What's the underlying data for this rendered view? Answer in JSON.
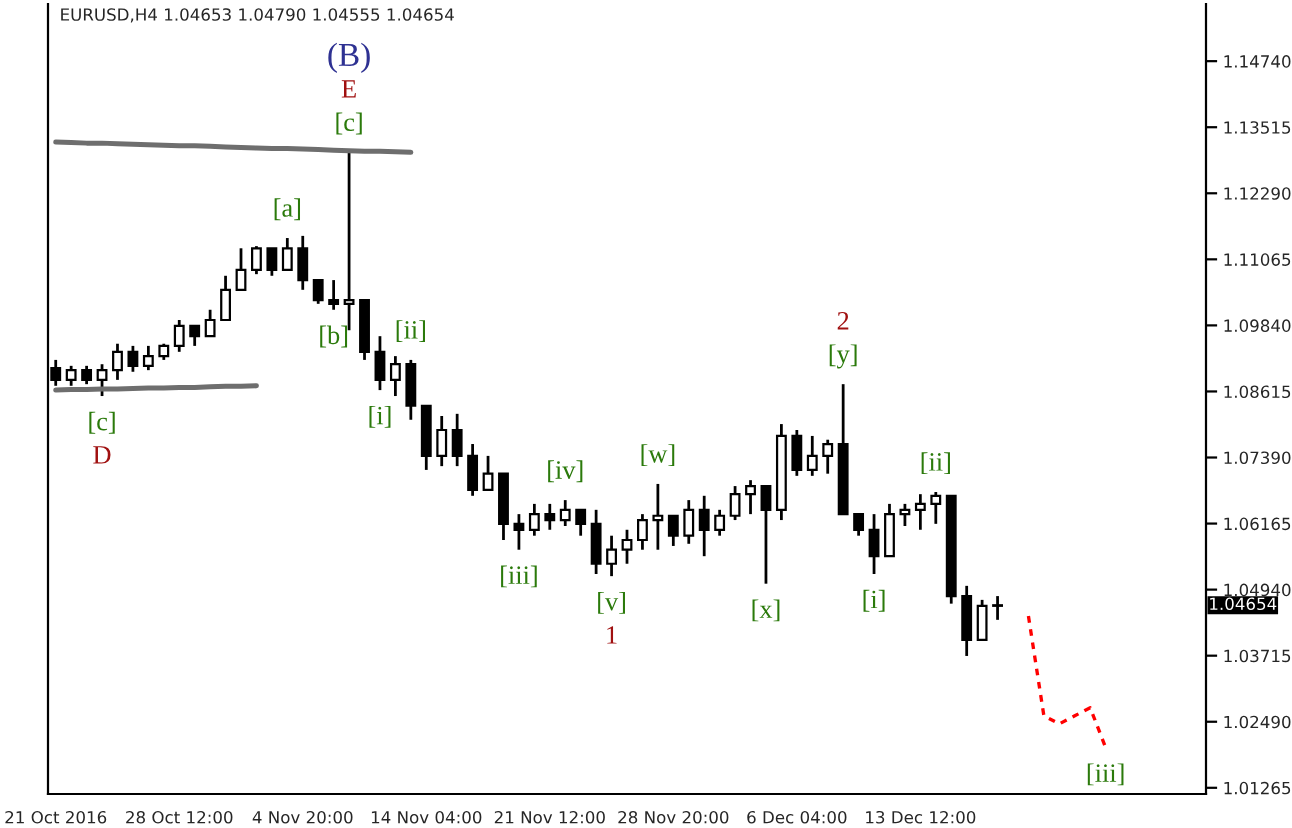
{
  "chart_data": {
    "type": "candlestick",
    "title": "EURUSD,H4 1.04653 1.04790 1.04555 1.04654",
    "color": "#000000",
    "categories": [
      "21 Oct 2016",
      null,
      null,
      null,
      null,
      null,
      null,
      null,
      "28 Oct 12:00",
      null,
      null,
      null,
      null,
      null,
      null,
      null,
      "4 Nov 20:00",
      null,
      null,
      null,
      null,
      null,
      null,
      null,
      "14 Nov 04:00",
      null,
      null,
      null,
      null,
      null,
      null,
      null,
      "21 Nov 12:00",
      null,
      null,
      null,
      null,
      null,
      null,
      null,
      "28 Nov 20:00",
      null,
      null,
      null,
      null,
      null,
      null,
      null,
      "6 Dec 04:00",
      null,
      null,
      null,
      null,
      null,
      null,
      null,
      "13 Dec 12:00",
      null,
      null,
      null,
      null,
      null,
      null,
      null,
      null,
      null,
      null,
      null,
      null,
      null,
      null,
      null,
      null,
      null,
      null
    ],
    "ohlc": [
      [
        1.0905,
        1.092,
        1.0872,
        1.0883
      ],
      [
        1.0883,
        1.0909,
        1.0872,
        1.0901
      ],
      [
        1.0901,
        1.0909,
        1.0875,
        1.0883
      ],
      [
        1.0883,
        1.0912,
        1.0853,
        1.0901
      ],
      [
        1.0901,
        1.095,
        1.0883,
        1.0935
      ],
      [
        1.0935,
        1.0946,
        1.0898,
        1.0909
      ],
      [
        1.0909,
        1.0946,
        1.0901,
        1.0927
      ],
      [
        1.0927,
        1.095,
        1.092,
        1.0946
      ],
      [
        1.0946,
        1.0994,
        1.0935,
        1.0983
      ],
      [
        1.0983,
        1.0983,
        1.0946,
        1.0964
      ],
      [
        1.0964,
        1.1013,
        1.0964,
        1.0994
      ],
      [
        1.0994,
        1.1076,
        1.0994,
        1.105
      ],
      [
        1.105,
        1.1127,
        1.105,
        1.1087
      ],
      [
        1.1087,
        1.1131,
        1.1079,
        1.1127
      ],
      [
        1.1127,
        1.1127,
        1.1076,
        1.1087
      ],
      [
        1.1087,
        1.1146,
        1.1087,
        1.1127
      ],
      [
        1.1127,
        1.115,
        1.105,
        1.1068
      ],
      [
        1.1068,
        1.1068,
        1.1024,
        1.1031
      ],
      [
        1.1031,
        1.1068,
        1.1013,
        1.1024
      ],
      [
        1.1024,
        1.1305,
        1.0975,
        1.1031
      ],
      [
        1.1031,
        1.1031,
        1.092,
        1.0935
      ],
      [
        1.0935,
        1.0964,
        1.0864,
        1.0883
      ],
      [
        1.0883,
        1.0927,
        1.0853,
        1.0912
      ],
      [
        1.0912,
        1.092,
        1.0809,
        1.0835
      ],
      [
        1.0835,
        1.0835,
        1.0716,
        1.0742
      ],
      [
        1.0742,
        1.0816,
        1.0723,
        1.079
      ],
      [
        1.079,
        1.082,
        1.0723,
        1.0742
      ],
      [
        1.0742,
        1.0764,
        1.0668,
        1.0679
      ],
      [
        1.0679,
        1.0742,
        1.0679,
        1.0709
      ],
      [
        1.0709,
        1.0709,
        1.0586,
        1.0616
      ],
      [
        1.0616,
        1.0634,
        1.0568,
        1.0605
      ],
      [
        1.0605,
        1.0653,
        1.0594,
        1.0634
      ],
      [
        1.0634,
        1.0653,
        1.0605,
        1.0623
      ],
      [
        1.0623,
        1.066,
        1.0612,
        1.0642
      ],
      [
        1.0642,
        1.0642,
        1.0594,
        1.0616
      ],
      [
        1.0616,
        1.0642,
        1.0523,
        1.0542
      ],
      [
        1.0542,
        1.0594,
        1.0519,
        1.0568
      ],
      [
        1.0568,
        1.0605,
        1.0542,
        1.0586
      ],
      [
        1.0586,
        1.0634,
        1.0568,
        1.0623
      ],
      [
        1.0623,
        1.069,
        1.0568,
        1.0631
      ],
      [
        1.0631,
        1.0631,
        1.0575,
        1.0594
      ],
      [
        1.0594,
        1.066,
        1.0579,
        1.0642
      ],
      [
        1.0642,
        1.0668,
        1.0556,
        1.0605
      ],
      [
        1.0605,
        1.0642,
        1.0594,
        1.0631
      ],
      [
        1.0631,
        1.0686,
        1.0623,
        1.0671
      ],
      [
        1.0671,
        1.0697,
        1.0634,
        1.0686
      ],
      [
        1.0686,
        1.0686,
        1.0505,
        1.0642
      ],
      [
        1.0642,
        1.0801,
        1.0623,
        1.0779
      ],
      [
        1.0779,
        1.079,
        1.0705,
        1.0716
      ],
      [
        1.0716,
        1.0779,
        1.0705,
        1.0742
      ],
      [
        1.0742,
        1.0772,
        1.0709,
        1.0764
      ],
      [
        1.0764,
        1.0875,
        1.0634,
        1.0634
      ],
      [
        1.0634,
        1.0634,
        1.0594,
        1.0605
      ],
      [
        1.0605,
        1.0634,
        1.0523,
        1.0556
      ],
      [
        1.0556,
        1.0653,
        1.0556,
        1.0634
      ],
      [
        1.0634,
        1.0653,
        1.0612,
        1.0642
      ],
      [
        1.0642,
        1.0671,
        1.0605,
        1.0653
      ],
      [
        1.0653,
        1.0675,
        1.0616,
        1.0668
      ],
      [
        1.0668,
        1.0668,
        1.0468,
        1.0482
      ],
      [
        1.0482,
        1.0501,
        1.0371,
        1.0401
      ],
      [
        1.0401,
        1.0475,
        1.0401,
        1.0464
      ],
      [
        1.0464,
        1.0482,
        1.0438,
        1.0465
      ],
      null,
      null,
      null,
      null,
      null,
      null,
      null,
      null,
      null,
      null,
      null,
      null,
      null
    ],
    "series": [
      {
        "type": "line",
        "color": "#6e6e6e",
        "values": [
          1.1324,
          1.1323,
          1.1322,
          1.1322,
          1.1321,
          1.132,
          1.1319,
          1.1318,
          1.1317,
          1.1317,
          1.1316,
          1.1315,
          1.1314,
          1.1313,
          1.1312,
          1.1312,
          1.1311,
          1.131,
          1.1309,
          1.1308,
          1.1307,
          1.1307,
          1.1306,
          1.1305,
          null,
          null,
          null,
          null,
          null,
          null,
          null,
          null,
          null,
          null,
          null,
          null,
          null,
          null,
          null,
          null,
          null,
          null,
          null,
          null,
          null,
          null,
          null,
          null,
          null,
          null,
          null,
          null,
          null,
          null,
          null,
          null,
          null,
          null,
          null,
          null,
          null,
          null,
          null,
          null,
          null,
          null,
          null,
          null,
          null,
          null,
          null,
          null,
          null,
          null,
          null
        ]
      },
      {
        "type": "line",
        "color": "#6e6e6e",
        "values": [
          1.0864,
          1.0865,
          1.0865,
          1.0866,
          1.0866,
          1.0867,
          1.0868,
          1.0868,
          1.0869,
          1.0869,
          1.087,
          1.0871,
          1.0871,
          1.0872,
          null,
          null,
          null,
          null,
          null,
          null,
          null,
          null,
          null,
          null,
          null,
          null,
          null,
          null,
          null,
          null,
          null,
          null,
          null,
          null,
          null,
          null,
          null,
          null,
          null,
          null,
          null,
          null,
          null,
          null,
          null,
          null,
          null,
          null,
          null,
          null,
          null,
          null,
          null,
          null,
          null,
          null,
          null,
          null,
          null,
          null,
          null,
          null,
          null,
          null,
          null,
          null,
          null,
          null,
          null,
          null,
          null,
          null,
          null,
          null,
          null
        ]
      },
      {
        "type": "line",
        "color": "#ff0000",
        "line_style": "dotted",
        "values": [
          null,
          null,
          null,
          null,
          null,
          null,
          null,
          null,
          null,
          null,
          null,
          null,
          null,
          null,
          null,
          null,
          null,
          null,
          null,
          null,
          null,
          null,
          null,
          null,
          null,
          null,
          null,
          null,
          null,
          null,
          null,
          null,
          null,
          null,
          null,
          null,
          null,
          null,
          null,
          null,
          null,
          null,
          null,
          null,
          null,
          null,
          null,
          null,
          null,
          null,
          null,
          null,
          null,
          null,
          null,
          null,
          null,
          null,
          null,
          null,
          null,
          null,
          null,
          1.0445,
          1.026,
          1.0245,
          1.026,
          1.0275,
          1.0201,
          null,
          null,
          null,
          null,
          null,
          null
        ]
      }
    ],
    "ylim": [
      1.0115,
      1.158
    ],
    "yticks": [
      {
        "value": 1.01265,
        "label": "1.01265"
      },
      {
        "value": 1.0249,
        "label": "1.02490"
      },
      {
        "value": 1.03715,
        "label": "1.03715"
      },
      {
        "value": 1.0494,
        "label": "1.04940"
      },
      {
        "value": 1.06165,
        "label": "1.06165"
      },
      {
        "value": 1.0739,
        "label": "1.07390"
      },
      {
        "value": 1.08615,
        "label": "1.08615"
      },
      {
        "value": 1.0984,
        "label": "1.09840"
      },
      {
        "value": 1.11065,
        "label": "1.11065"
      },
      {
        "value": 1.1229,
        "label": "1.12290"
      },
      {
        "value": 1.13515,
        "label": "1.13515"
      },
      {
        "value": 1.1474,
        "label": "1.14740"
      }
    ],
    "annotations": [
      "[c]",
      "D",
      "(B)",
      "E",
      "[c]",
      "[a]",
      "[b]",
      "[ii]",
      "[i]",
      "[iii]",
      "[iv]",
      "[w]",
      "[v]",
      "1",
      "[x]",
      "2",
      "[y]",
      "[i]",
      "[ii]",
      "[iii]",
      "1.04654"
    ],
    "grid": false
  }
}
